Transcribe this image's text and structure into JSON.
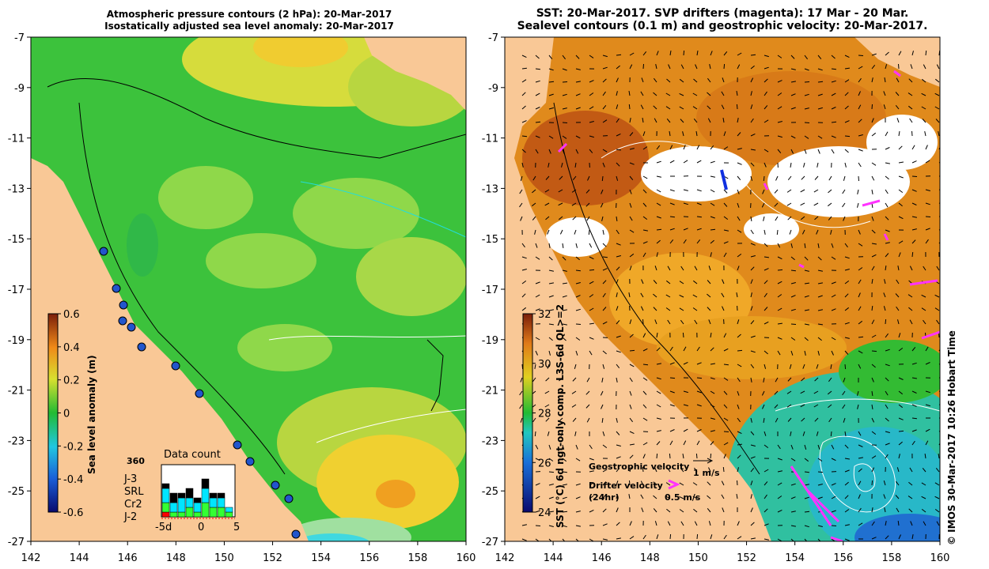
{
  "left_panel": {
    "title_line1": "Atmospheric pressure contours (2 hPa): 20-Mar-2017",
    "title_line2": "Isostatically adjusted sea level anomaly: 20-Mar-2017",
    "colorbar_label": "Sea level anomaly (m)",
    "colorbar_ticks": [
      "0.6",
      "0.4",
      "0.2",
      "0",
      "-0.2",
      "-0.4",
      "-0.6"
    ],
    "data_count": {
      "title": "Data count",
      "max_label": "360",
      "x_ticks": [
        "-5d",
        "0",
        "5"
      ],
      "missions": [
        {
          "name": "J-3",
          "color": "#000000"
        },
        {
          "name": "SRL",
          "color": "#00e5ff"
        },
        {
          "name": "Cr2",
          "color": "#33ff33"
        },
        {
          "name": "J-2",
          "color": "#ff0000"
        }
      ]
    }
  },
  "right_panel": {
    "title_line1": "SST: 20-Mar-2017. SVP drifters (magenta): 17 Mar - 20 Mar.",
    "title_line2": "Sealevel contours (0.1 m) and geostrophic velocity: 20-Mar-2017.",
    "colorbar_label": "SST (°C) 6d ngt-only comp. L3S-6d QL>=2",
    "colorbar_ticks": [
      "32",
      "30",
      "28",
      "26",
      "24"
    ],
    "legend": {
      "geostrophic_label": "Geostrophic velocity",
      "geostrophic_scale": "1 m/s",
      "drifter_label": "Drifter velocity",
      "drifter_sub": "(24hr)",
      "drifter_scale": "0.5 m/s"
    }
  },
  "axes": {
    "x_ticks": [
      "142",
      "144",
      "146",
      "148",
      "150",
      "152",
      "154",
      "156",
      "158",
      "160"
    ],
    "y_ticks": [
      "-7",
      "-9",
      "-11",
      "-13",
      "-15",
      "-17",
      "-19",
      "-21",
      "-23",
      "-25",
      "-27"
    ]
  },
  "credit": "© IMOS 30-Mar-2017 10:26 Hobart Time",
  "colors": {
    "land": "#f9c896",
    "sla_green": "#3cc23c",
    "sla_light": "#8fd84a",
    "sla_yellow": "#f0d030",
    "sst_orange": "#e08a1c",
    "drifter": "#ff33ff"
  }
}
